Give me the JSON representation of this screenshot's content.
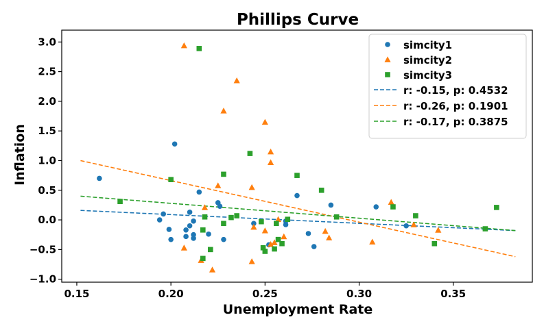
{
  "chart_data": {
    "type": "scatter",
    "title": "Phillips Curve",
    "xlabel": "Unemployment Rate",
    "ylabel": "Inflation",
    "xlim": [
      0.142,
      0.392
    ],
    "ylim": [
      -1.05,
      3.2
    ],
    "xticks": [
      0.15,
      0.2,
      0.25,
      0.3,
      0.35
    ],
    "xtick_labels": [
      "0.15",
      "0.20",
      "0.25",
      "0.30",
      "0.35"
    ],
    "yticks": [
      -1.0,
      -0.5,
      0.0,
      0.5,
      1.0,
      1.5,
      2.0,
      2.5,
      3.0
    ],
    "ytick_labels": [
      "−1.0",
      "−0.5",
      "0.0",
      "0.5",
      "1.0",
      "1.5",
      "2.0",
      "2.5",
      "3.0"
    ],
    "grid": false,
    "legend_position": "top-right",
    "series": [
      {
        "name": "simcity1",
        "marker": "circle",
        "color": "#1f77b4",
        "points": [
          [
            0.162,
            0.7
          ],
          [
            0.194,
            0.0
          ],
          [
            0.196,
            0.1
          ],
          [
            0.199,
            -0.16
          ],
          [
            0.2,
            -0.33
          ],
          [
            0.202,
            1.28
          ],
          [
            0.208,
            -0.17
          ],
          [
            0.208,
            -0.28
          ],
          [
            0.21,
            -0.1
          ],
          [
            0.21,
            0.13
          ],
          [
            0.212,
            -0.02
          ],
          [
            0.212,
            -0.25
          ],
          [
            0.212,
            -0.31
          ],
          [
            0.215,
            0.47
          ],
          [
            0.22,
            -0.24
          ],
          [
            0.225,
            0.29
          ],
          [
            0.226,
            0.23
          ],
          [
            0.228,
            -0.33
          ],
          [
            0.244,
            -0.06
          ],
          [
            0.252,
            -0.42
          ],
          [
            0.261,
            -0.08
          ],
          [
            0.261,
            -0.02
          ],
          [
            0.267,
            0.41
          ],
          [
            0.273,
            -0.23
          ],
          [
            0.276,
            -0.45
          ],
          [
            0.285,
            0.25
          ],
          [
            0.309,
            0.22
          ],
          [
            0.325,
            -0.1
          ]
        ]
      },
      {
        "name": "simcity2",
        "marker": "triangle",
        "color": "#ff7f0e",
        "points": [
          [
            0.207,
            2.94
          ],
          [
            0.207,
            -0.47
          ],
          [
            0.216,
            -0.68
          ],
          [
            0.218,
            0.21
          ],
          [
            0.222,
            -0.84
          ],
          [
            0.225,
            0.58
          ],
          [
            0.228,
            1.84
          ],
          [
            0.235,
            2.35
          ],
          [
            0.243,
            0.55
          ],
          [
            0.243,
            -0.7
          ],
          [
            0.244,
            -0.12
          ],
          [
            0.25,
            1.65
          ],
          [
            0.25,
            -0.18
          ],
          [
            0.253,
            1.15
          ],
          [
            0.253,
            0.97
          ],
          [
            0.253,
            -0.41
          ],
          [
            0.255,
            -0.38
          ],
          [
            0.257,
            0.01
          ],
          [
            0.26,
            -0.28
          ],
          [
            0.282,
            -0.19
          ],
          [
            0.284,
            -0.3
          ],
          [
            0.307,
            -0.37
          ],
          [
            0.317,
            0.3
          ],
          [
            0.329,
            -0.08
          ],
          [
            0.342,
            -0.17
          ]
        ]
      },
      {
        "name": "simcity3",
        "marker": "square",
        "color": "#2ca02c",
        "points": [
          [
            0.173,
            0.31
          ],
          [
            0.2,
            0.68
          ],
          [
            0.215,
            2.89
          ],
          [
            0.217,
            -0.65
          ],
          [
            0.217,
            -0.17
          ],
          [
            0.218,
            0.05
          ],
          [
            0.221,
            -0.5
          ],
          [
            0.228,
            0.77
          ],
          [
            0.228,
            -0.06
          ],
          [
            0.232,
            0.04
          ],
          [
            0.235,
            0.07
          ],
          [
            0.242,
            1.12
          ],
          [
            0.248,
            -0.03
          ],
          [
            0.249,
            -0.47
          ],
          [
            0.25,
            -0.53
          ],
          [
            0.255,
            -0.49
          ],
          [
            0.256,
            -0.06
          ],
          [
            0.257,
            -0.33
          ],
          [
            0.259,
            -0.4
          ],
          [
            0.262,
            0.01
          ],
          [
            0.267,
            0.75
          ],
          [
            0.28,
            0.5
          ],
          [
            0.288,
            0.05
          ],
          [
            0.318,
            0.22
          ],
          [
            0.33,
            0.07
          ],
          [
            0.34,
            -0.4
          ],
          [
            0.367,
            -0.15
          ],
          [
            0.373,
            0.21
          ]
        ]
      }
    ],
    "fit_lines": [
      {
        "label": "r: -0.15, p: 0.4532",
        "color": "#1f77b4",
        "x": [
          0.152,
          0.383
        ],
        "y": [
          0.16,
          -0.18
        ]
      },
      {
        "label": "r: -0.26, p: 0.1901",
        "color": "#ff7f0e",
        "x": [
          0.152,
          0.383
        ],
        "y": [
          1.0,
          -0.62
        ]
      },
      {
        "label": "r: -0.17, p: 0.3875",
        "color": "#2ca02c",
        "x": [
          0.152,
          0.383
        ],
        "y": [
          0.4,
          -0.18
        ]
      }
    ]
  }
}
